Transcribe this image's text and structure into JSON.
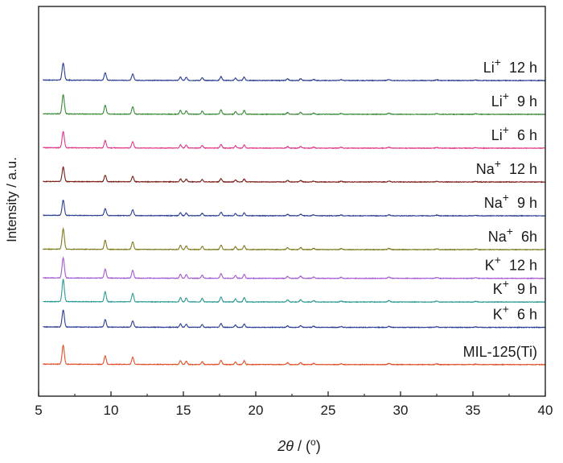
{
  "chart_data": {
    "type": "line",
    "title": "",
    "xlabel_prefix": "2",
    "xlabel_theta": "θ",
    "xlabel_suffix": " / (",
    "xlabel_deg": "o",
    "xlabel_close": ")",
    "ylabel": "Intensity / a.u.",
    "xlim": [
      5,
      40
    ],
    "xticks": [
      5,
      10,
      15,
      20,
      25,
      30,
      35,
      40
    ],
    "peaks": [
      {
        "x": 6.7,
        "h": 1.0,
        "w": 0.11
      },
      {
        "x": 9.6,
        "h": 0.45,
        "w": 0.1
      },
      {
        "x": 11.5,
        "h": 0.38,
        "w": 0.1
      },
      {
        "x": 14.8,
        "h": 0.2,
        "w": 0.09
      },
      {
        "x": 15.2,
        "h": 0.18,
        "w": 0.09
      },
      {
        "x": 16.3,
        "h": 0.16,
        "w": 0.09
      },
      {
        "x": 17.6,
        "h": 0.22,
        "w": 0.1
      },
      {
        "x": 18.6,
        "h": 0.14,
        "w": 0.09
      },
      {
        "x": 19.2,
        "h": 0.2,
        "w": 0.09
      },
      {
        "x": 22.2,
        "h": 0.09,
        "w": 0.1
      },
      {
        "x": 23.1,
        "h": 0.1,
        "w": 0.1
      },
      {
        "x": 24.0,
        "h": 0.06,
        "w": 0.1
      },
      {
        "x": 25.9,
        "h": 0.05,
        "w": 0.1
      },
      {
        "x": 29.2,
        "h": 0.06,
        "w": 0.12
      },
      {
        "x": 32.5,
        "h": 0.04,
        "w": 0.12
      },
      {
        "x": 35.2,
        "h": 0.03,
        "w": 0.12
      }
    ],
    "series": [
      {
        "label": {
          "ion": "Li",
          "charge": "+",
          "time": "  12 h"
        },
        "color": "#2b3f93",
        "offset": 9,
        "scale": 1.0
      },
      {
        "label": {
          "ion": "Li",
          "charge": "+",
          "time": "  9 h"
        },
        "color": "#3a8a35",
        "offset": 8,
        "scale": 1.15
      },
      {
        "label": {
          "ion": "Li",
          "charge": "+",
          "time": "  6 h"
        },
        "color": "#e0398a",
        "offset": 7,
        "scale": 0.95
      },
      {
        "label": {
          "ion": "Na",
          "charge": "+",
          "time": "  12 h"
        },
        "color": "#7a1e16",
        "offset": 6,
        "scale": 0.85
      },
      {
        "label": {
          "ion": "Na",
          "charge": "+",
          "time": "  9 h"
        },
        "color": "#2b3f93",
        "offset": 5,
        "scale": 0.9
      },
      {
        "label": {
          "ion": "Na",
          "charge": "+",
          "time": "  6h"
        },
        "color": "#7f7a1e",
        "offset": 4,
        "scale": 1.2
      },
      {
        "label": {
          "ion": "K",
          "charge": "+",
          "time": "  12 h"
        },
        "color": "#a35bd1",
        "offset": 3.15,
        "scale": 1.2
      },
      {
        "label": {
          "ion": "K",
          "charge": "+",
          "time": "  9 h"
        },
        "color": "#2c9a93",
        "offset": 2.45,
        "scale": 1.3
      },
      {
        "label": {
          "ion": "K",
          "charge": "+",
          "time": "  6 h"
        },
        "color": "#2b3f93",
        "offset": 1.7,
        "scale": 1.0
      },
      {
        "label": {
          "ion": "MIL-125(Ti)",
          "charge": "",
          "time": ""
        },
        "color": "#e0502a",
        "offset": 0.6,
        "scale": 1.1
      }
    ]
  }
}
